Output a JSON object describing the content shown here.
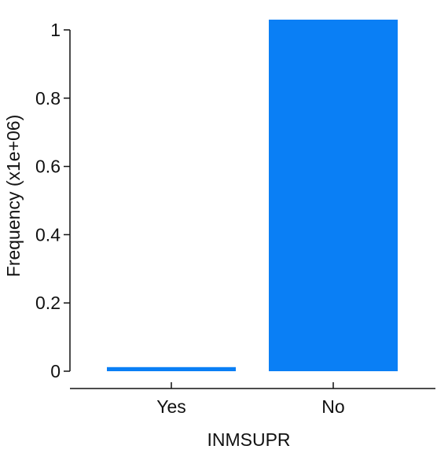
{
  "chart_data": {
    "type": "bar",
    "categories": [
      "Yes",
      "No"
    ],
    "values": [
      0.012,
      1.03
    ],
    "xlabel": "INMSUPR",
    "ylabel": "Frequency (x1e+06)",
    "ylim": [
      0,
      1
    ],
    "yticks": [
      "0",
      "0.2",
      "0.4",
      "0.6",
      "0.8",
      "1"
    ],
    "grid": false,
    "bar_color": "#0a7ff5"
  }
}
